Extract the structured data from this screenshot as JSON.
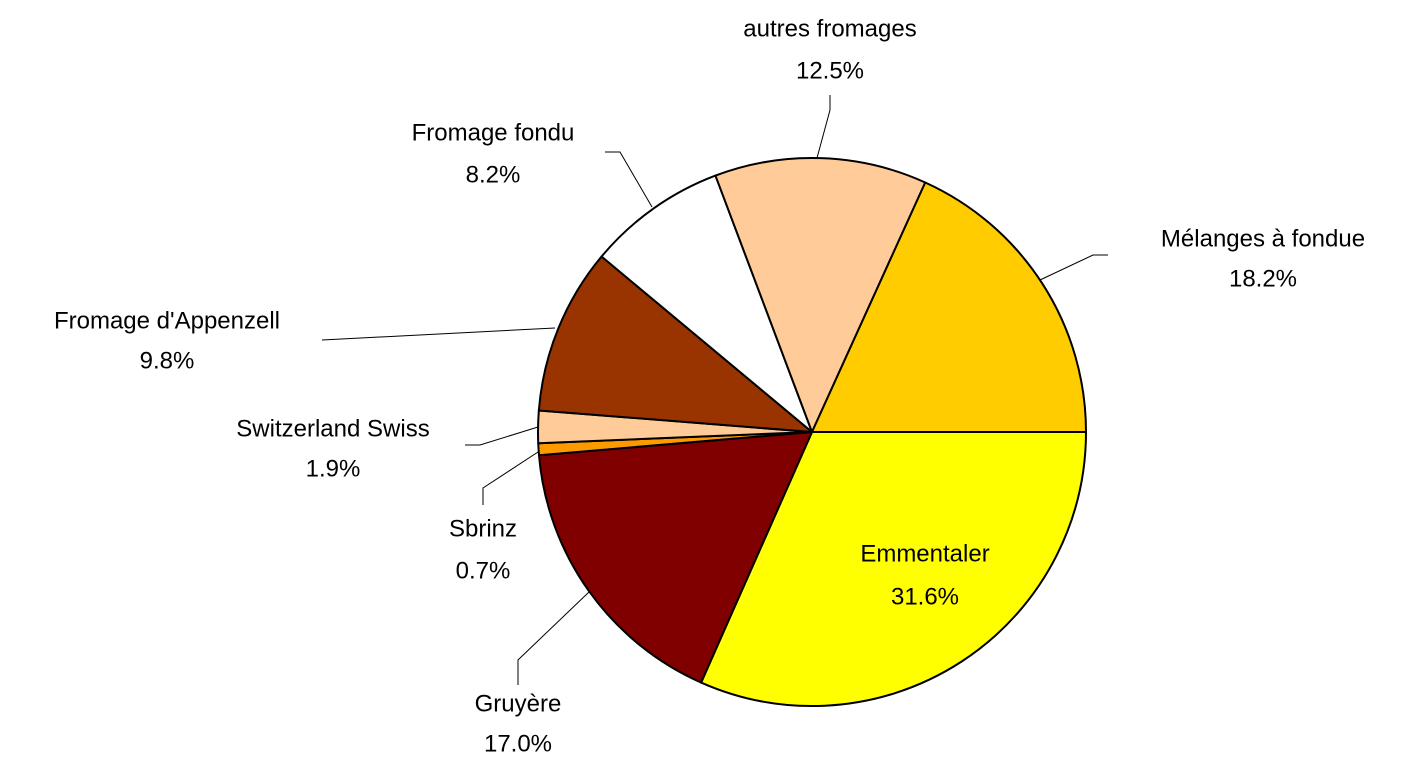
{
  "chart_data": {
    "type": "pie",
    "categories": [
      "Emmentaler",
      "Gruyère",
      "Sbrinz",
      "Switzerland Swiss",
      "Fromage d'Appenzell",
      "Fromage fondu",
      "autres fromages",
      "Mélanges à fondue"
    ],
    "values": [
      31.6,
      17.0,
      0.7,
      1.9,
      9.8,
      8.2,
      12.5,
      18.2
    ],
    "value_labels": [
      "31.6%",
      "17.0%",
      "0.7%",
      "1.9%",
      "9.8%",
      "8.2%",
      "12.5%",
      "18.2%"
    ],
    "colors": [
      "#ffff00",
      "#800000",
      "#ff9900",
      "#ffcc99",
      "#993300",
      "#ffffff",
      "#ffcc99",
      "#ffcc00"
    ]
  }
}
